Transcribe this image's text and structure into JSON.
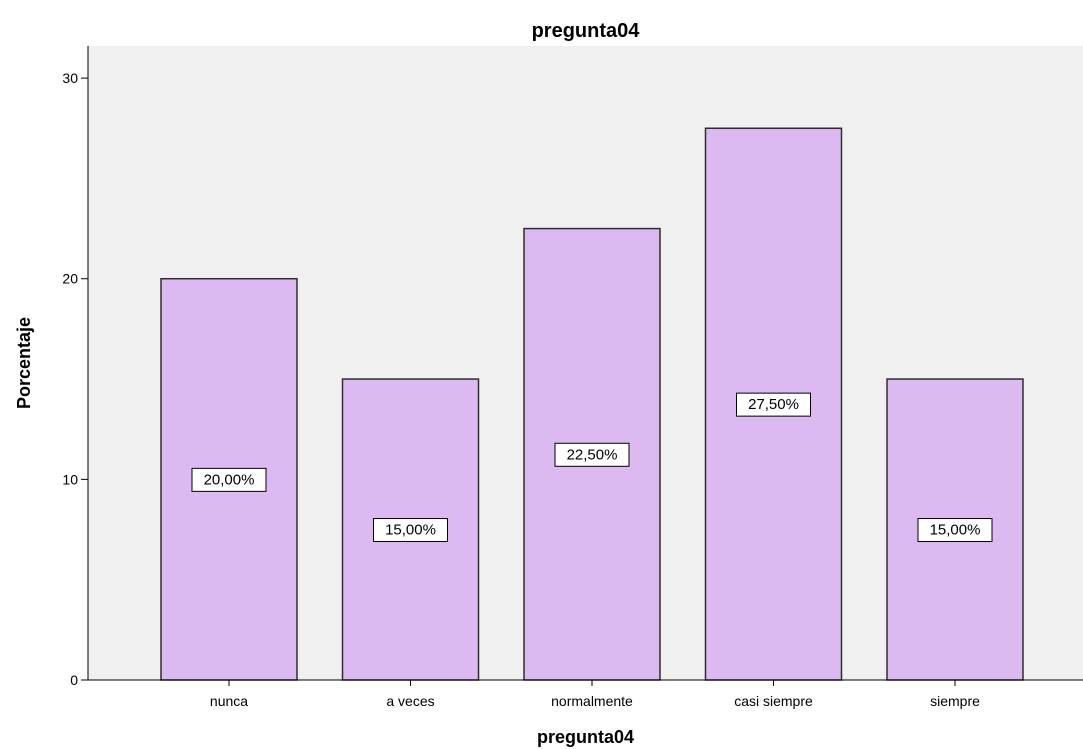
{
  "chart_data": {
    "type": "bar",
    "title": "pregunta04",
    "xlabel": "pregunta04",
    "ylabel": "Porcentaje",
    "categories": [
      "nunca",
      "a veces",
      "normalmente",
      "casi siempre",
      "siempre"
    ],
    "values": [
      20.0,
      15.0,
      22.5,
      27.5,
      15.0
    ],
    "data_labels": [
      "20,00%",
      "15,00%",
      "22,50%",
      "27,50%",
      "15,00%"
    ],
    "ylim": [
      0,
      31.6
    ],
    "yticks": [
      0,
      10,
      20,
      30
    ],
    "grid": false,
    "legend": "none",
    "colors": {
      "bar_fill": "#dcb9f0",
      "bar_stroke": "#2e2e2e",
      "plot_background": "#f0f0f0",
      "page_background": "#ffffff",
      "label_box_fill": "#ffffff",
      "label_box_stroke": "#000000"
    }
  }
}
